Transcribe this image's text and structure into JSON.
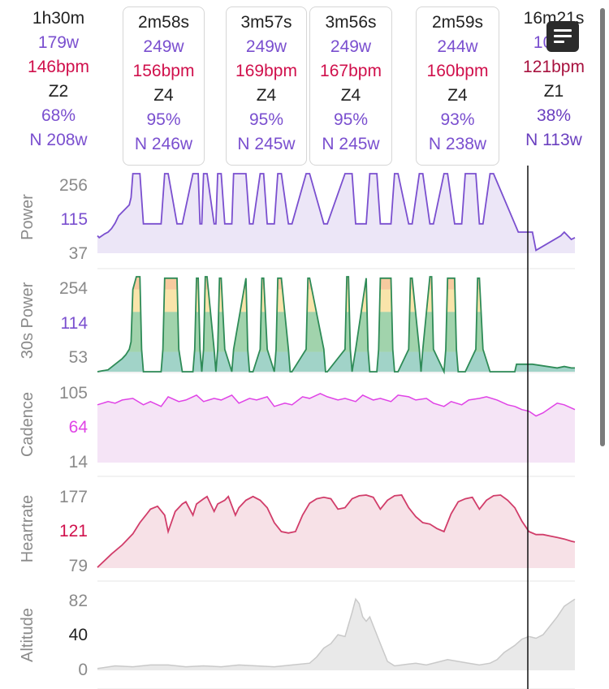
{
  "summary_columns": [
    {
      "duration": "1h30m",
      "power": "179w",
      "heartrate": "146bpm",
      "zone": "Z2",
      "intensity": "68%",
      "normalized_power": "N 208w"
    },
    {
      "duration": "2m58s",
      "power": "249w",
      "heartrate": "156bpm",
      "zone": "Z4",
      "intensity": "95%",
      "normalized_power": "N 246w"
    },
    {
      "duration": "3m57s",
      "power": "249w",
      "heartrate": "169bpm",
      "zone": "Z4",
      "intensity": "95%",
      "normalized_power": "N 245w"
    },
    {
      "duration": "3m56s",
      "power": "249w",
      "heartrate": "167bpm",
      "zone": "Z4",
      "intensity": "95%",
      "normalized_power": "N 245w"
    },
    {
      "duration": "2m59s",
      "power": "244w",
      "heartrate": "160bpm",
      "zone": "Z4",
      "intensity": "93%",
      "normalized_power": "N 238w"
    },
    {
      "duration": "16m21s",
      "power": "101w",
      "heartrate": "121bpm",
      "zone": "Z1",
      "intensity": "38%",
      "normalized_power": "N 113w"
    }
  ],
  "colors": {
    "power": "#7a4fcf",
    "heartrate": "#d0104c",
    "cadence": "#e043e6",
    "altitude": "#c9c9c9",
    "axis_text": "#8a8a8a",
    "zone_green": "#2e9e46",
    "zone_yellow": "#f2c443",
    "zone_orange": "#ee8a2a",
    "zone_teal": "#2f9e86"
  },
  "icons": {
    "menu": "notes-icon"
  },
  "chart_data": [
    {
      "type": "line",
      "ylabel": "Power",
      "ticks": [
        "256",
        "115",
        "37"
      ],
      "mid_tick_color": "#7a4fcf",
      "ylim": [
        37,
        256
      ],
      "x": [
        0,
        1,
        4,
        6,
        8,
        10,
        12,
        14,
        16,
        18,
        19,
        20,
        24,
        26,
        28,
        36,
        38,
        40,
        45,
        48,
        54,
        56,
        57,
        58,
        59,
        60,
        61,
        62,
        66,
        67,
        68,
        69,
        70,
        72,
        76,
        77,
        84,
        86,
        88,
        92,
        94,
        96,
        100,
        102,
        104,
        108,
        110,
        118,
        120,
        128,
        130,
        140,
        144,
        146,
        152,
        154,
        158,
        160,
        166,
        168,
        170,
        176,
        178,
        182,
        184,
        188,
        190,
        196,
        198,
        202,
        206,
        208,
        214,
        216,
        218,
        222,
        224,
        236,
        238,
        246,
        248,
        262,
        264,
        268,
        270
      ],
      "values": [
        85,
        80,
        90,
        95,
        105,
        120,
        140,
        150,
        160,
        170,
        190,
        256,
        256,
        118,
        118,
        118,
        256,
        256,
        118,
        118,
        256,
        256,
        256,
        118,
        118,
        256,
        256,
        256,
        118,
        118,
        256,
        256,
        256,
        118,
        118,
        256,
        256,
        118,
        118,
        256,
        256,
        118,
        118,
        256,
        256,
        118,
        118,
        256,
        256,
        118,
        118,
        256,
        256,
        118,
        118,
        256,
        256,
        118,
        118,
        256,
        256,
        118,
        118,
        256,
        256,
        118,
        118,
        256,
        256,
        118,
        118,
        256,
        256,
        118,
        118,
        256,
        256,
        118,
        95,
        95,
        45,
        85,
        95,
        75,
        80
      ]
    },
    {
      "type": "area",
      "ylabel": "30s Power",
      "ticks": [
        "254",
        "114",
        "53"
      ],
      "mid_tick_color": "#7a4fcf",
      "ylim": [
        0,
        254
      ],
      "x": [
        0,
        6,
        10,
        14,
        16,
        18,
        19,
        20,
        22,
        24,
        25,
        26,
        28,
        36,
        37,
        38,
        45,
        46,
        48,
        54,
        55,
        56,
        57,
        58,
        59,
        60,
        61,
        62,
        66,
        67,
        68,
        69,
        70,
        72,
        76,
        77,
        84,
        85,
        86,
        88,
        92,
        93,
        94,
        96,
        100,
        101,
        102,
        104,
        108,
        109,
        110,
        118,
        119,
        120,
        128,
        129,
        130,
        140,
        141,
        142,
        143,
        144,
        146,
        152,
        153,
        154,
        158,
        159,
        160,
        166,
        167,
        168,
        170,
        176,
        177,
        178,
        182,
        183,
        184,
        188,
        189,
        190,
        196,
        197,
        198,
        202,
        203,
        204,
        206,
        208,
        214,
        215,
        216,
        218,
        222,
        223,
        224,
        236,
        237,
        238,
        246,
        260,
        264,
        268,
        270
      ],
      "values": [
        0,
        5,
        20,
        35,
        45,
        60,
        80,
        220,
        254,
        254,
        60,
        0,
        0,
        0,
        60,
        250,
        250,
        60,
        0,
        0,
        60,
        250,
        250,
        60,
        0,
        60,
        254,
        254,
        60,
        0,
        60,
        250,
        250,
        60,
        0,
        60,
        250,
        60,
        0,
        0,
        60,
        250,
        250,
        60,
        0,
        60,
        250,
        250,
        60,
        0,
        0,
        60,
        250,
        250,
        60,
        0,
        0,
        60,
        254,
        254,
        60,
        0,
        60,
        250,
        60,
        0,
        0,
        60,
        250,
        250,
        60,
        0,
        0,
        60,
        250,
        250,
        60,
        0,
        60,
        254,
        254,
        60,
        0,
        60,
        250,
        250,
        60,
        0,
        0,
        0,
        60,
        250,
        250,
        60,
        0,
        0,
        0,
        0,
        20,
        20,
        20,
        10,
        14,
        10,
        10
      ],
      "bands": [
        53,
        114,
        160,
        220,
        254
      ]
    },
    {
      "type": "line",
      "ylabel": "Cadence",
      "ticks": [
        "105",
        "64",
        "14"
      ],
      "mid_tick_color": "#e043e6",
      "ylim": [
        14,
        105
      ],
      "x": [
        0,
        6,
        10,
        14,
        20,
        26,
        30,
        36,
        40,
        46,
        50,
        56,
        60,
        66,
        70,
        76,
        80,
        86,
        90,
        96,
        100,
        106,
        110,
        116,
        120,
        126,
        130,
        136,
        140,
        146,
        150,
        156,
        160,
        166,
        170,
        176,
        180,
        186,
        190,
        196,
        200,
        206,
        210,
        216,
        220,
        226,
        232,
        236,
        240,
        244,
        248,
        252,
        256,
        260,
        264,
        268,
        270
      ],
      "values": [
        86,
        90,
        88,
        92,
        94,
        86,
        90,
        84,
        96,
        90,
        92,
        98,
        90,
        94,
        92,
        98,
        88,
        94,
        92,
        96,
        84,
        88,
        86,
        96,
        94,
        100,
        96,
        92,
        94,
        90,
        98,
        92,
        94,
        90,
        98,
        96,
        92,
        94,
        88,
        84,
        90,
        86,
        92,
        94,
        96,
        92,
        86,
        84,
        80,
        78,
        72,
        76,
        82,
        88,
        86,
        82,
        80
      ]
    },
    {
      "type": "line",
      "ylabel": "Heartrate",
      "ticks": [
        "177",
        "121",
        "79"
      ],
      "mid_tick_color": "#d0104c",
      "ylim": [
        79,
        177
      ],
      "x": [
        0,
        8,
        14,
        20,
        24,
        28,
        30,
        34,
        38,
        40,
        44,
        48,
        50,
        54,
        56,
        60,
        62,
        66,
        68,
        72,
        74,
        78,
        80,
        84,
        88,
        92,
        96,
        100,
        104,
        108,
        112,
        116,
        120,
        124,
        128,
        132,
        136,
        140,
        144,
        148,
        152,
        156,
        160,
        164,
        168,
        172,
        176,
        180,
        184,
        188,
        192,
        196,
        200,
        204,
        208,
        212,
        216,
        220,
        224,
        228,
        232,
        236,
        240,
        244,
        248,
        252,
        256,
        260,
        264,
        268,
        270
      ],
      "values": [
        80,
        98,
        110,
        125,
        140,
        152,
        158,
        162,
        150,
        128,
        155,
        165,
        168,
        150,
        165,
        172,
        175,
        155,
        165,
        170,
        175,
        150,
        160,
        170,
        175,
        170,
        160,
        140,
        128,
        126,
        128,
        150,
        166,
        172,
        174,
        172,
        158,
        160,
        172,
        176,
        178,
        174,
        158,
        170,
        176,
        178,
        160,
        148,
        140,
        138,
        132,
        128,
        152,
        168,
        172,
        174,
        158,
        170,
        176,
        178,
        170,
        160,
        142,
        128,
        124,
        124,
        122,
        120,
        118,
        115,
        114
      ]
    },
    {
      "type": "area",
      "ylabel": "Altitude",
      "ticks": [
        "82",
        "40",
        "0"
      ],
      "mid_tick_color": "#222222",
      "ylim": [
        0,
        82
      ],
      "x": [
        0,
        10,
        20,
        30,
        40,
        50,
        60,
        70,
        80,
        90,
        100,
        110,
        120,
        124,
        128,
        132,
        136,
        140,
        144,
        146,
        148,
        150,
        152,
        154,
        156,
        160,
        164,
        168,
        172,
        176,
        180,
        186,
        192,
        198,
        204,
        210,
        216,
        222,
        226,
        230,
        236,
        240,
        244,
        248,
        252,
        256,
        260,
        264,
        270
      ],
      "values": [
        2,
        5,
        4,
        6,
        6,
        4,
        5,
        4,
        6,
        5,
        4,
        6,
        8,
        15,
        25,
        30,
        40,
        38,
        65,
        80,
        75,
        60,
        55,
        60,
        50,
        30,
        10,
        5,
        6,
        7,
        8,
        6,
        9,
        12,
        10,
        8,
        6,
        8,
        12,
        20,
        28,
        35,
        38,
        36,
        40,
        50,
        60,
        72,
        80
      ]
    }
  ]
}
